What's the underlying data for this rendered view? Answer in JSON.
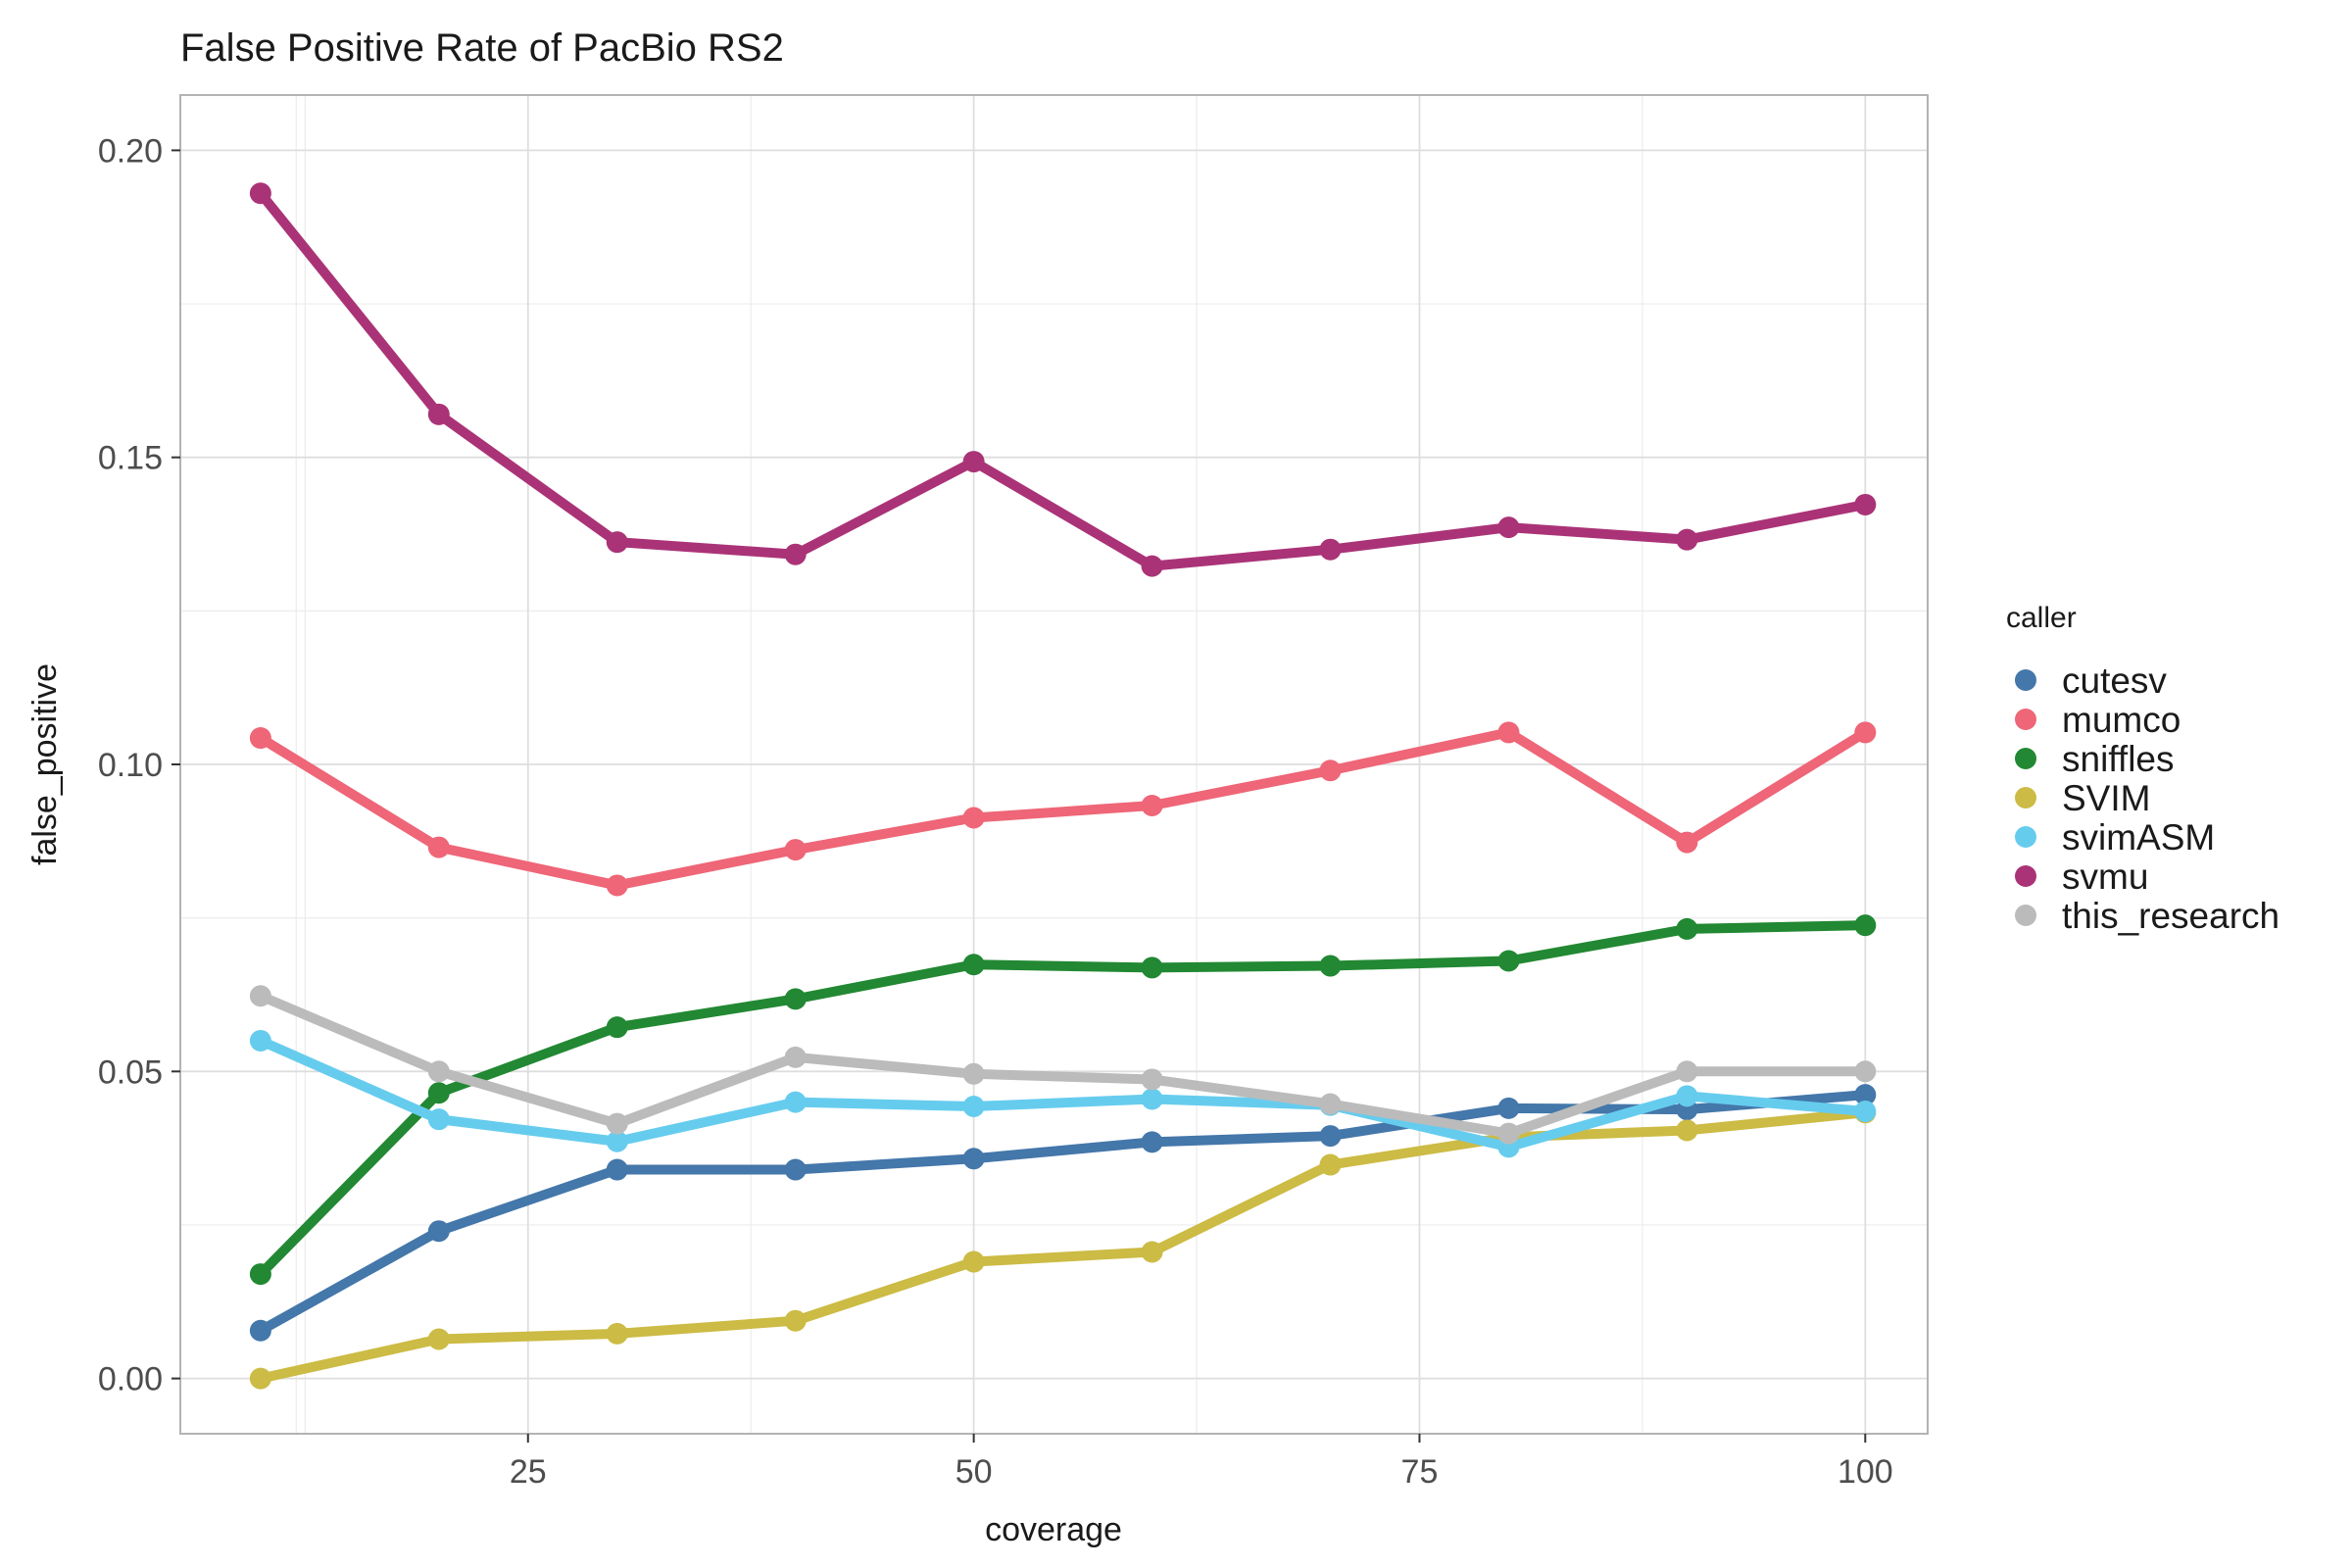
{
  "chart_data": {
    "type": "line",
    "title": "False Positive Rate of PacBio RS2",
    "xlabel": "coverage",
    "ylabel": "false_positive",
    "xlim": [
      5.5,
      103.5
    ],
    "ylim": [
      -0.009,
      0.209
    ],
    "x_ticks": [
      25,
      50,
      75,
      100
    ],
    "x_minor_ticks": [
      12.5,
      37.5,
      62.5,
      87.5
    ],
    "y_ticks": [
      0.0,
      0.05,
      0.1,
      0.15,
      0.2
    ],
    "x_tick_labels": [
      "25",
      "50",
      "75",
      "100"
    ],
    "y_tick_labels": [
      "0.00",
      "0.05",
      "0.10",
      "0.15",
      "0.20"
    ],
    "grid": true,
    "legend_title": "caller",
    "legend_position": "right",
    "x": [
      10,
      20,
      30,
      40,
      50,
      60,
      70,
      80,
      90,
      100
    ],
    "series": [
      {
        "name": "cutesv",
        "color": "#4477AA",
        "values": [
          0.0078,
          0.024,
          0.034,
          0.034,
          0.0358,
          0.0385,
          0.0395,
          0.044,
          0.0438,
          0.0462
        ]
      },
      {
        "name": "mumco",
        "color": "#EE6677",
        "values": [
          0.1043,
          0.0865,
          0.0803,
          0.0861,
          0.0913,
          0.0933,
          0.099,
          0.1052,
          0.0873,
          0.1052
        ]
      },
      {
        "name": "sniffles",
        "color": "#228833",
        "values": [
          0.017,
          0.0465,
          0.0572,
          0.0618,
          0.0674,
          0.0669,
          0.0672,
          0.068,
          0.0732,
          0.0738
        ]
      },
      {
        "name": "SVIM",
        "color": "#CCBB44",
        "values": [
          0.0,
          0.0064,
          0.0073,
          0.0094,
          0.019,
          0.0206,
          0.0348,
          0.0393,
          0.0404,
          0.0433
        ]
      },
      {
        "name": "svimASM",
        "color": "#66CCEE",
        "values": [
          0.055,
          0.0422,
          0.0386,
          0.045,
          0.0443,
          0.0455,
          0.0445,
          0.0377,
          0.046,
          0.0435
        ]
      },
      {
        "name": "svmu",
        "color": "#AA3377",
        "values": [
          0.193,
          0.157,
          0.1362,
          0.1342,
          0.1493,
          0.1323,
          0.135,
          0.1386,
          0.1366,
          0.1423
        ]
      },
      {
        "name": "this_research",
        "color": "#BBBBBB",
        "values": [
          0.0623,
          0.05,
          0.0415,
          0.0523,
          0.0496,
          0.0487,
          0.0447,
          0.0399,
          0.05,
          0.05
        ]
      }
    ]
  }
}
